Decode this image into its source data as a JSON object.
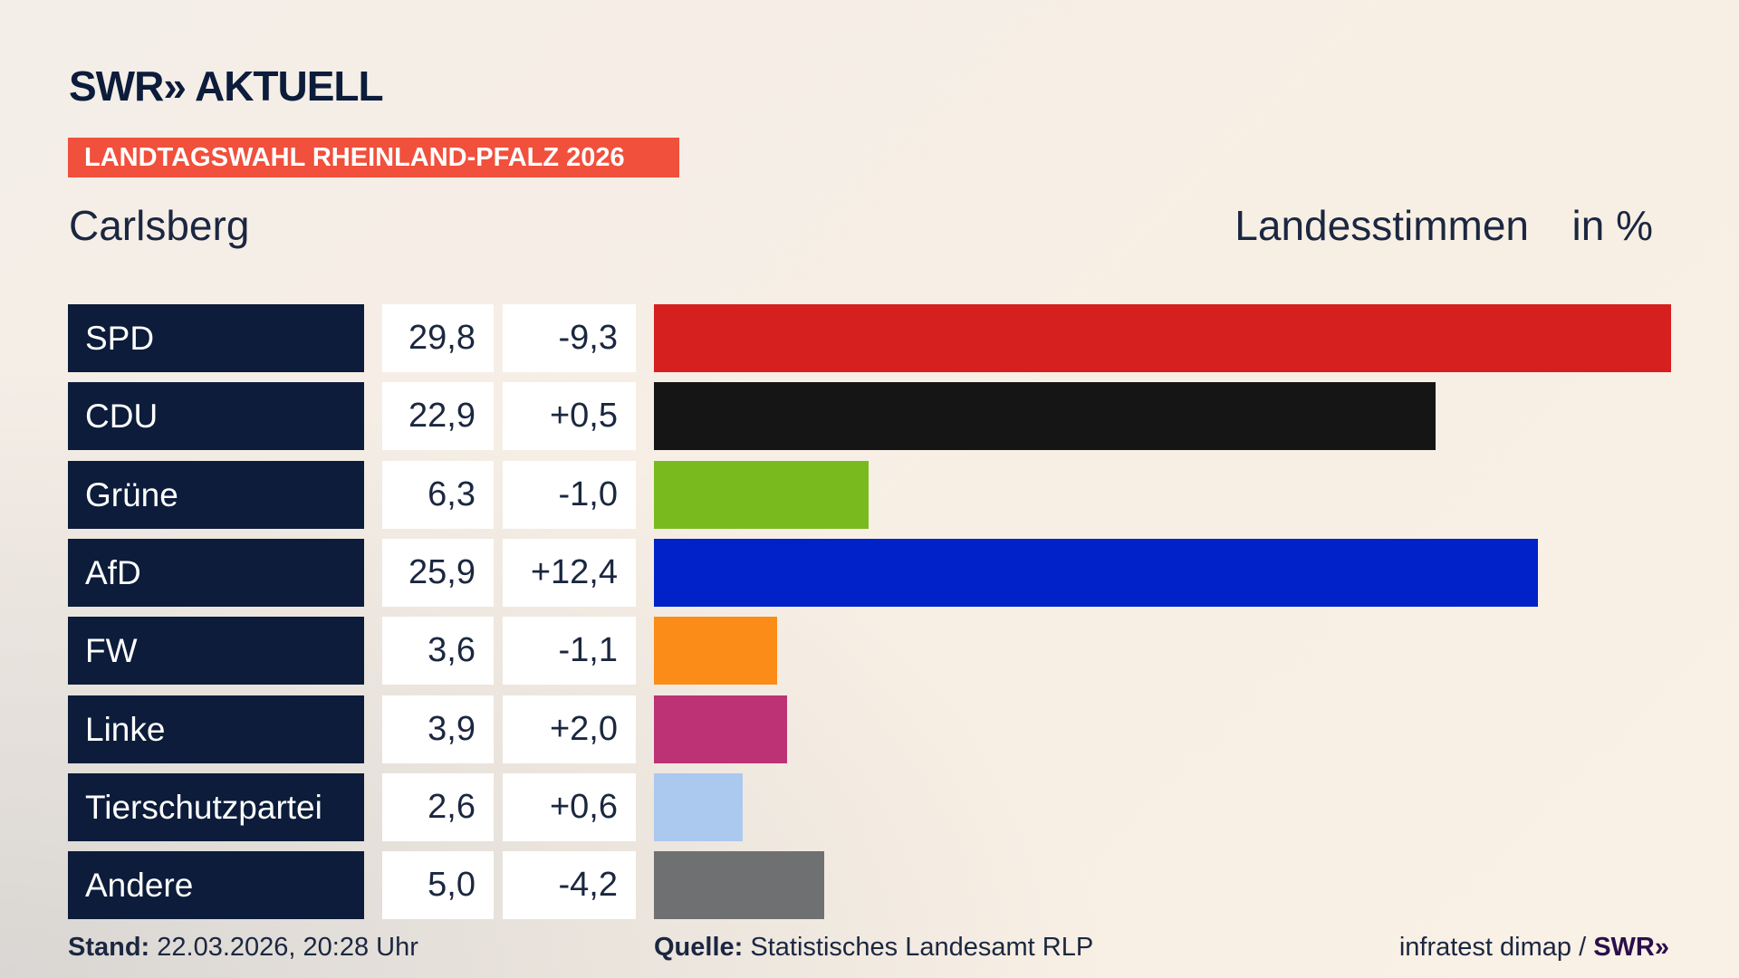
{
  "header": {
    "logo": "SWR» AKTUELL",
    "banner": "LANDTAGSWAHL RHEINLAND-PFALZ 2026"
  },
  "chart_data": {
    "type": "bar",
    "title": "Carlsberg",
    "subtitle": "Landesstimmen",
    "unit": "in %",
    "categories": [
      "SPD",
      "CDU",
      "Grüne",
      "AfD",
      "FW",
      "Linke",
      "Tierschutzpartei",
      "Andere"
    ],
    "values": [
      29.8,
      22.9,
      6.3,
      25.9,
      3.6,
      3.9,
      2.6,
      5.0
    ],
    "value_labels": [
      "29,8",
      "22,9",
      "6,3",
      "25,9",
      "3,6",
      "3,9",
      "2,6",
      "5,0"
    ],
    "changes": [
      -9.3,
      0.5,
      -1.0,
      12.4,
      -1.1,
      2.0,
      0.6,
      -4.2
    ],
    "change_labels": [
      "-9,3",
      "+0,5",
      "-1,0",
      "+12,4",
      "-1,1",
      "+2,0",
      "+0,6",
      "-4,2"
    ],
    "colors": [
      "#d61f1f",
      "#151515",
      "#79bb1e",
      "#0022c8",
      "#fb8c17",
      "#bc3275",
      "#abc8ee",
      "#6f7072"
    ]
  },
  "footer": {
    "stand_label": "Stand:",
    "stand": "22.03.2026, 20:28 Uhr",
    "source_label": "Quelle:",
    "source": "Statistisches Landesamt RLP",
    "credit": "infratest dimap /",
    "credit_logo": "SWR»"
  }
}
